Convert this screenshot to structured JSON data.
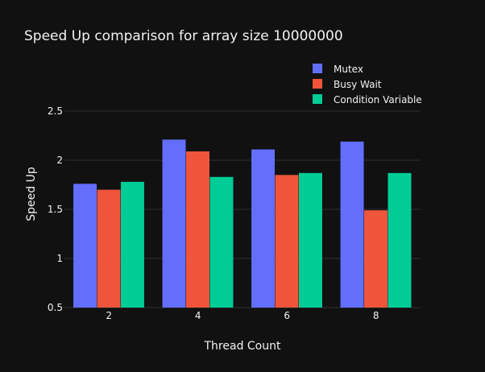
{
  "chart_data": {
    "type": "bar",
    "title": "Speed Up comparison for array size 10000000",
    "xlabel": "Thread Count",
    "ylabel": "Speed Up",
    "categories": [
      "2",
      "4",
      "6",
      "8"
    ],
    "ylim": [
      0.5,
      2.5
    ],
    "yticks": [
      0.5,
      1,
      1.5,
      2,
      2.5
    ],
    "ytick_labels": [
      "0.5",
      "1",
      "1.5",
      "2",
      "2.5"
    ],
    "grid": true,
    "legend_position": "top-right",
    "series": [
      {
        "name": "Mutex",
        "color": "#636efa",
        "values": [
          1.76,
          2.21,
          2.11,
          2.19
        ]
      },
      {
        "name": "Busy Wait",
        "color": "#ef553b",
        "values": [
          1.7,
          2.09,
          1.85,
          1.49
        ]
      },
      {
        "name": "Condition Variable",
        "color": "#00cc96",
        "values": [
          1.78,
          1.83,
          1.87,
          1.87
        ]
      }
    ]
  }
}
